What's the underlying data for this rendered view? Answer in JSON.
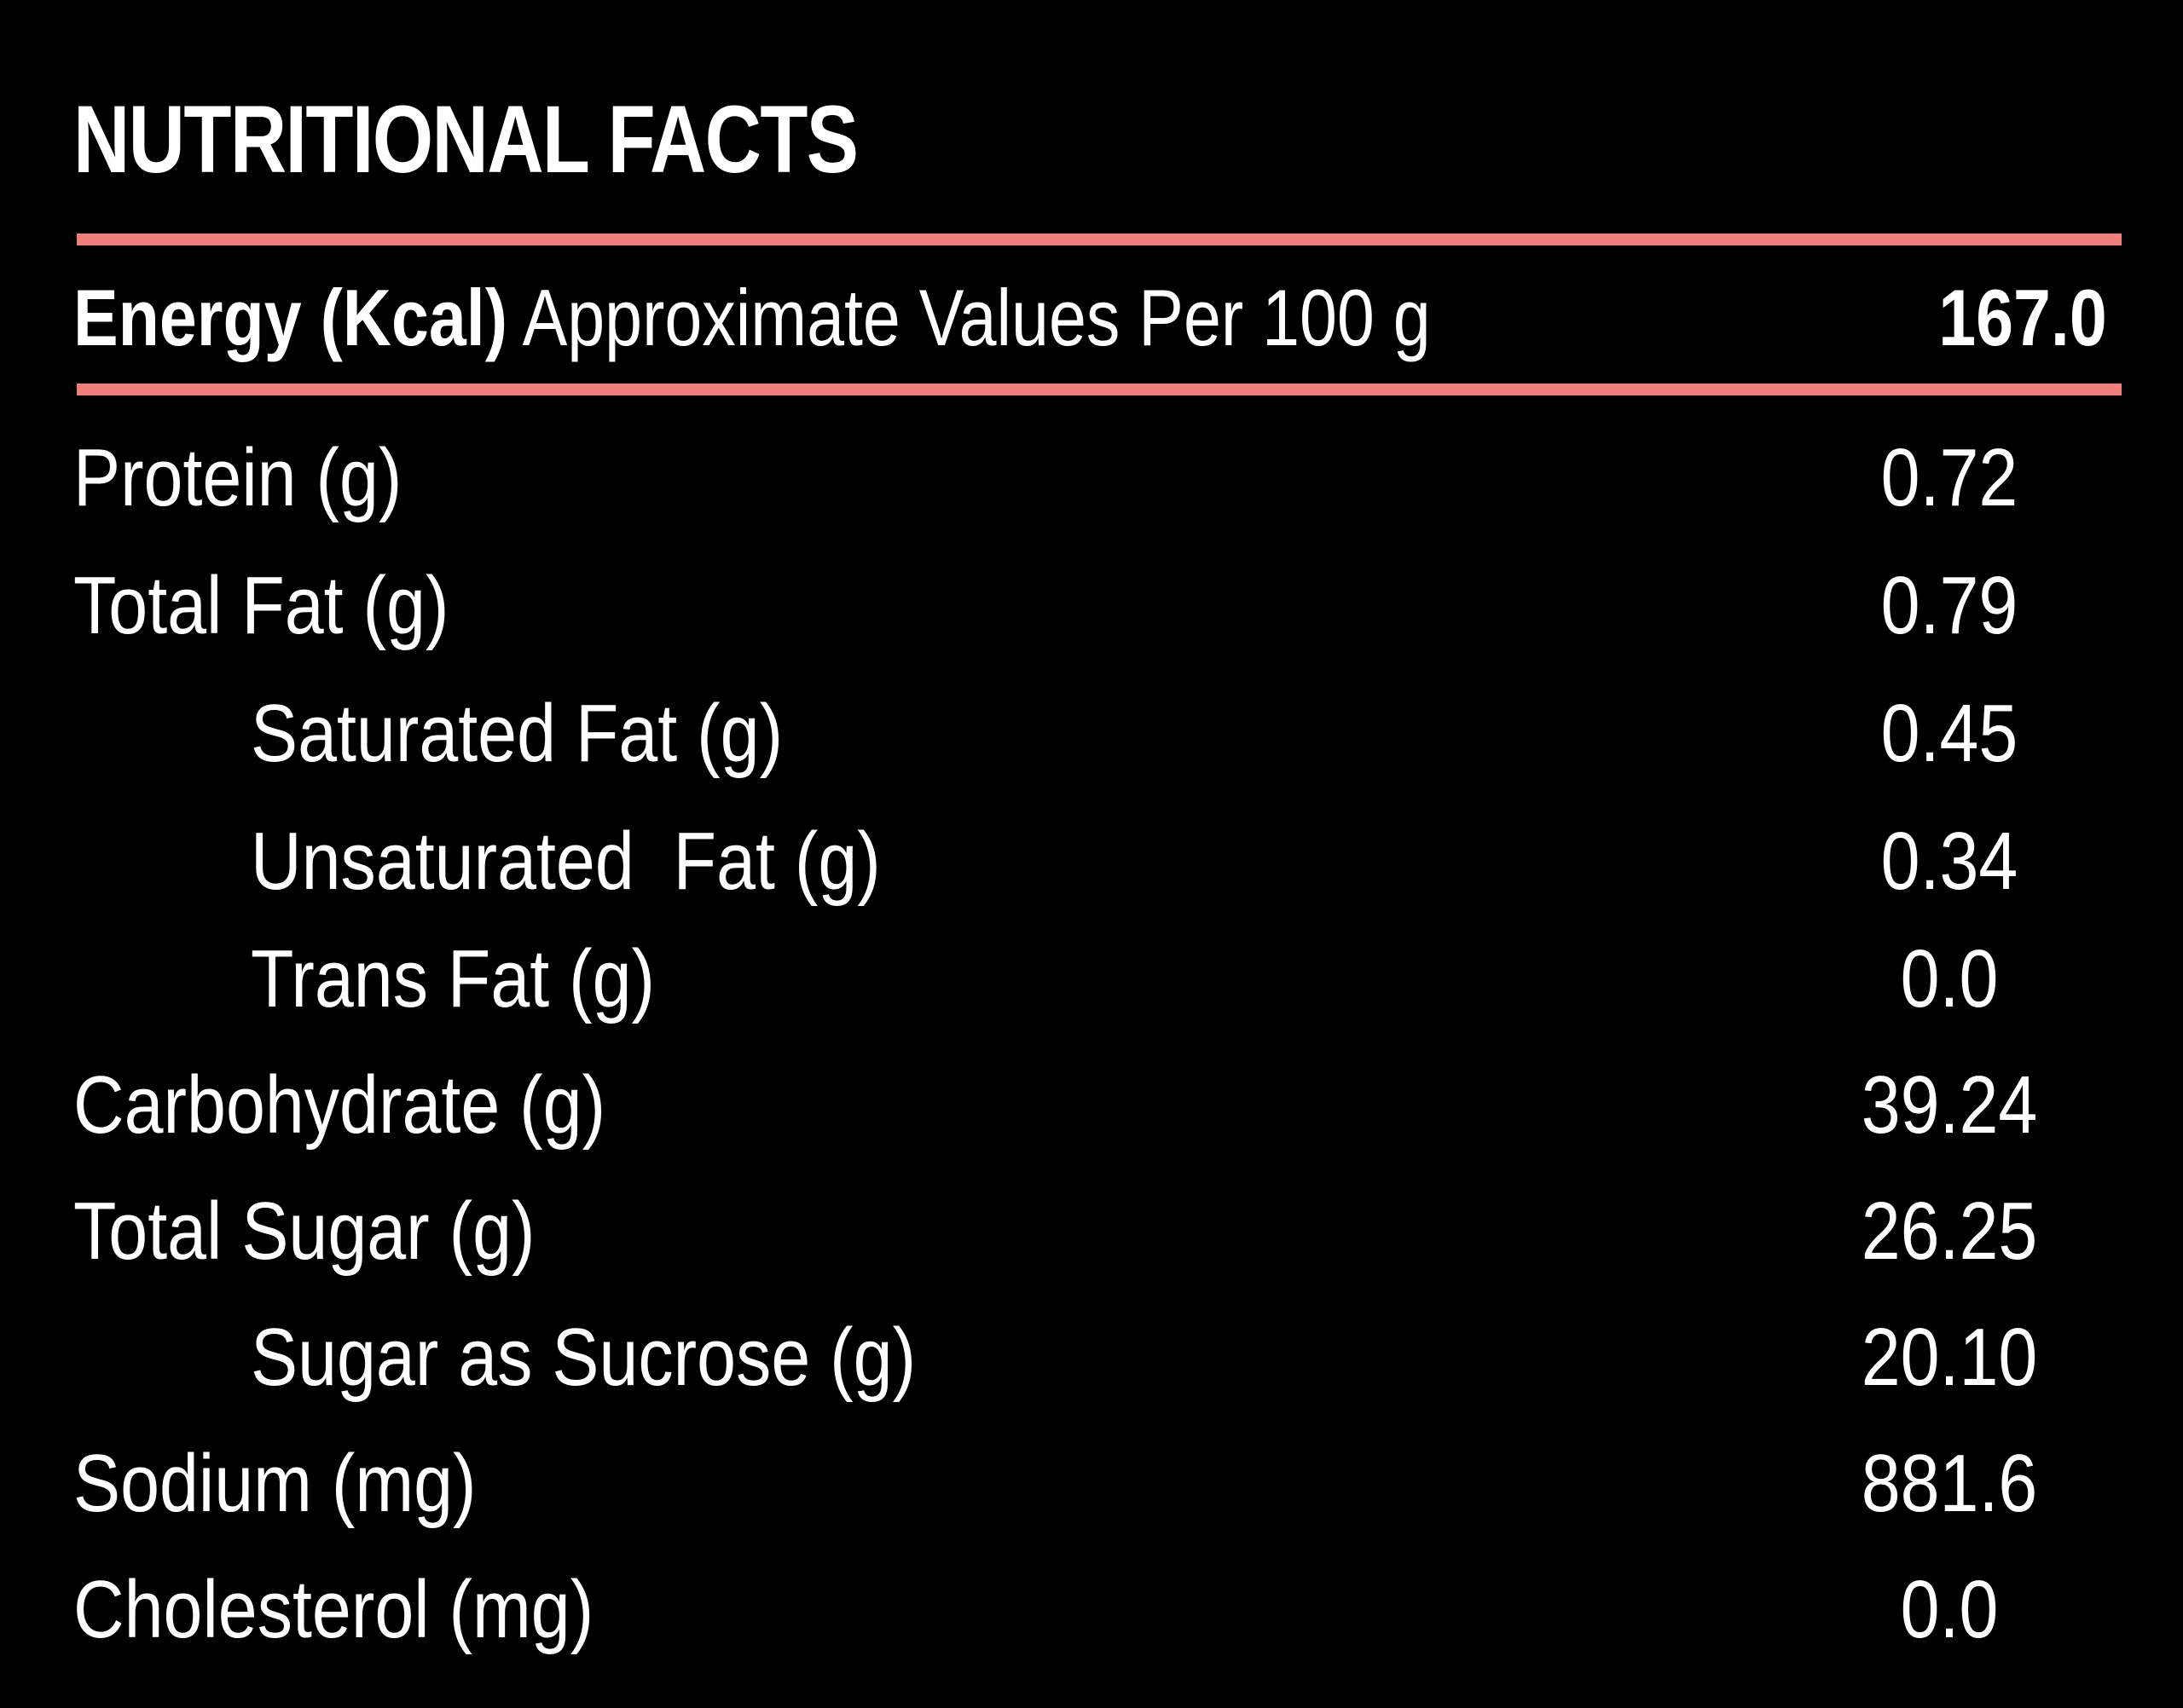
{
  "title": "NUTRITIONAL FACTS",
  "energy": {
    "label_bold": "Energy (Kcal)",
    "label_rest": " Approximate Values Per 100 g",
    "value": "167.0"
  },
  "rows": [
    {
      "label": "Protein (g)",
      "value": "0.72"
    },
    {
      "label": "Total Fat (g)",
      "value": "0.79"
    },
    {
      "label": "Saturated Fat (g)",
      "value": "0.45"
    },
    {
      "label": "Unsaturated  Fat (g)",
      "value": "0.34"
    },
    {
      "label": "Trans Fat (g)",
      "value": "0.0"
    },
    {
      "label": "Carbohydrate (g)",
      "value": "39.24"
    },
    {
      "label": "Total Sugar (g)",
      "value": "26.25"
    },
    {
      "label": "Sugar as Sucrose (g)",
      "value": "20.10"
    },
    {
      "label": "Sodium (mg)",
      "value": "881.6"
    },
    {
      "label": "Cholesterol (mg)",
      "value": "0.0"
    }
  ],
  "colors": {
    "background": "#000000",
    "text": "#ffffff",
    "accent_rule": "#f07f7c"
  }
}
